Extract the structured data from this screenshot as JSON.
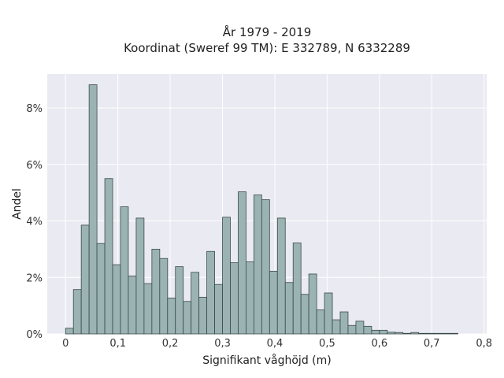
{
  "chart_data": {
    "type": "bar",
    "title_lines": [
      "År 1979 - 2019",
      "Koordinat (Sweref 99 TM): E 332789, N 6332289"
    ],
    "xlabel": "Signifikant våghöjd (m)",
    "ylabel": "Andel",
    "xlim": [
      -0.035,
      0.805
    ],
    "ylim": [
      0,
      9.2
    ],
    "x_ticks": [
      0,
      0.1,
      0.2,
      0.3,
      0.4,
      0.5,
      0.6,
      0.7,
      0.8
    ],
    "x_tick_labels": [
      "0",
      "0,1",
      "0,2",
      "0,3",
      "0,4",
      "0,5",
      "0,6",
      "0,7",
      "0,8"
    ],
    "y_ticks": [
      0,
      2,
      4,
      6,
      8
    ],
    "y_tick_labels": [
      "0%",
      "2%",
      "4%",
      "6%",
      "8%"
    ],
    "bin_width": 0.015,
    "bin_start": 0.0,
    "values": [
      0.2,
      1.57,
      3.85,
      8.82,
      3.2,
      5.5,
      2.45,
      4.5,
      2.05,
      4.1,
      1.78,
      3.0,
      2.67,
      1.27,
      2.38,
      1.15,
      2.18,
      1.3,
      2.92,
      1.75,
      4.13,
      2.52,
      5.03,
      2.55,
      4.92,
      4.75,
      2.22,
      4.1,
      1.82,
      3.22,
      1.4,
      2.12,
      0.85,
      1.45,
      0.5,
      0.78,
      0.3,
      0.45,
      0.27,
      0.13,
      0.13,
      0.06,
      0.05,
      0.02,
      0.05,
      0.02,
      0.02,
      0.02,
      0.02,
      0.02
    ],
    "bar_color": "#9bb3b3",
    "bar_edge_color": "#3a4a48",
    "background_color": "#eaeaf2",
    "grid": true
  }
}
